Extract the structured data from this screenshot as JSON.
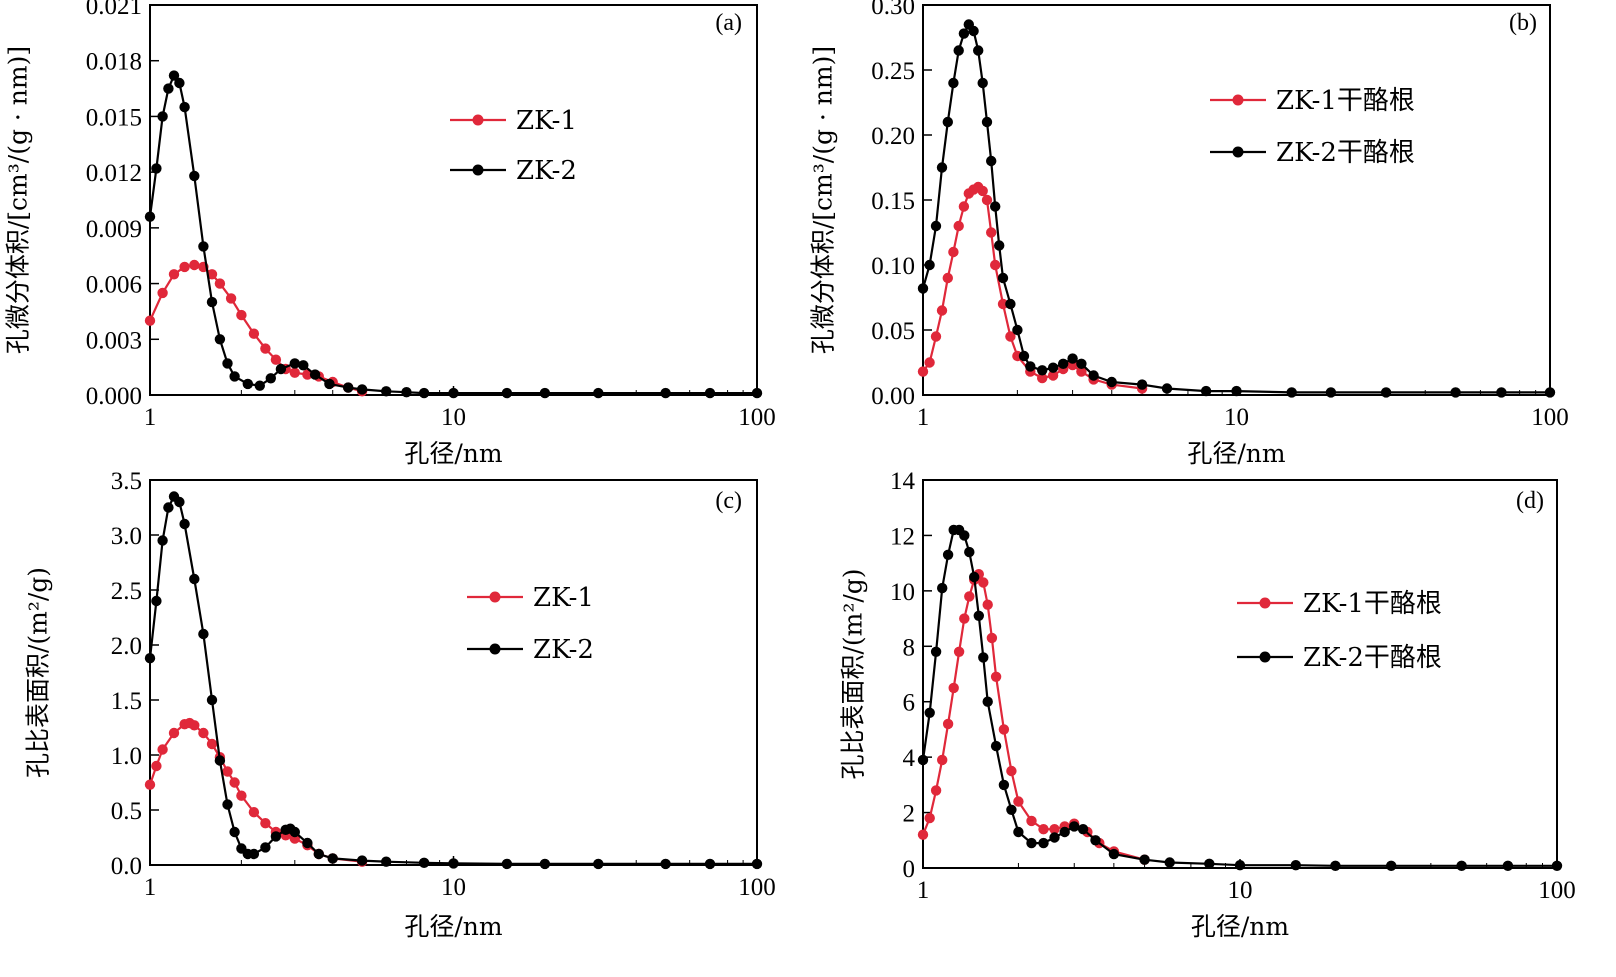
{
  "colors": {
    "ZK-1": "#e0283a",
    "ZK-2": "#000000"
  },
  "chart_data": [
    {
      "type": "line",
      "panel_label": "(a)",
      "xlabel": "孔径/nm",
      "ylabel": "孔微分体积/[cm³/(g · nm)]",
      "x_scale": "log",
      "xlim": [
        1,
        100
      ],
      "ylim": [
        0,
        0.021
      ],
      "x_ticks": [
        1,
        10,
        100
      ],
      "x_tick_labels": [
        "1",
        "10",
        "100"
      ],
      "y_ticks": [
        0,
        0.003,
        0.006,
        0.009,
        0.012,
        0.015,
        0.018,
        0.021
      ],
      "y_tick_labels": [
        "0.000",
        "0.003",
        "0.006",
        "0.009",
        "0.012",
        "0.015",
        "0.018",
        "0.021"
      ],
      "legend_position": "upper-center",
      "series": [
        {
          "name": "ZK-1",
          "color": "#e0283a",
          "points": [
            [
              1,
              0.004
            ],
            [
              1.1,
              0.0055
            ],
            [
              1.2,
              0.0065
            ],
            [
              1.3,
              0.0069
            ],
            [
              1.4,
              0.007
            ],
            [
              1.5,
              0.0069
            ],
            [
              1.6,
              0.0065
            ],
            [
              1.7,
              0.006
            ],
            [
              1.85,
              0.0052
            ],
            [
              2.0,
              0.0043
            ],
            [
              2.2,
              0.0033
            ],
            [
              2.4,
              0.0025
            ],
            [
              2.6,
              0.0019
            ],
            [
              2.8,
              0.0014
            ],
            [
              3.0,
              0.0012
            ],
            [
              3.3,
              0.0011
            ],
            [
              3.6,
              0.001
            ],
            [
              4.0,
              0.0007
            ],
            [
              4.5,
              0.0004
            ],
            [
              5,
              0.0002
            ]
          ]
        },
        {
          "name": "ZK-2",
          "color": "#000000",
          "points": [
            [
              1,
              0.0096
            ],
            [
              1.05,
              0.0122
            ],
            [
              1.1,
              0.015
            ],
            [
              1.15,
              0.0165
            ],
            [
              1.2,
              0.0172
            ],
            [
              1.25,
              0.0168
            ],
            [
              1.3,
              0.0155
            ],
            [
              1.4,
              0.0118
            ],
            [
              1.5,
              0.008
            ],
            [
              1.6,
              0.005
            ],
            [
              1.7,
              0.003
            ],
            [
              1.8,
              0.0017
            ],
            [
              1.9,
              0.001
            ],
            [
              2.1,
              0.0006
            ],
            [
              2.3,
              0.0005
            ],
            [
              2.5,
              0.0009
            ],
            [
              2.7,
              0.0014
            ],
            [
              3.0,
              0.0017
            ],
            [
              3.2,
              0.0016
            ],
            [
              3.5,
              0.0011
            ],
            [
              3.9,
              0.0006
            ],
            [
              4.5,
              0.0004
            ],
            [
              5,
              0.0003
            ],
            [
              6,
              0.0002
            ],
            [
              7,
              0.00015
            ],
            [
              8,
              0.0001
            ],
            [
              10,
              0.0001
            ],
            [
              15,
              0.0001
            ],
            [
              20,
              0.0001
            ],
            [
              30,
              0.0001
            ],
            [
              50,
              0.0001
            ],
            [
              70,
              0.0001
            ],
            [
              100,
              0.0001
            ]
          ]
        }
      ]
    },
    {
      "type": "line",
      "panel_label": "(b)",
      "xlabel": "孔径/nm",
      "ylabel": "孔微分体积/[cm³/(g · nm)]",
      "x_scale": "log",
      "xlim": [
        1,
        100
      ],
      "ylim": [
        0,
        0.3
      ],
      "x_ticks": [
        1,
        10,
        100
      ],
      "x_tick_labels": [
        "1",
        "10",
        "100"
      ],
      "y_ticks": [
        0,
        0.05,
        0.1,
        0.15,
        0.2,
        0.25,
        0.3
      ],
      "y_tick_labels": [
        "0.00",
        "0.05",
        "0.10",
        "0.15",
        "0.20",
        "0.25",
        "0.30"
      ],
      "legend_position": "upper-center",
      "series": [
        {
          "name": "ZK-1干酪根",
          "color": "#e0283a",
          "points": [
            [
              1,
              0.018
            ],
            [
              1.05,
              0.025
            ],
            [
              1.1,
              0.045
            ],
            [
              1.15,
              0.065
            ],
            [
              1.2,
              0.09
            ],
            [
              1.25,
              0.11
            ],
            [
              1.3,
              0.13
            ],
            [
              1.35,
              0.145
            ],
            [
              1.4,
              0.155
            ],
            [
              1.45,
              0.158
            ],
            [
              1.5,
              0.16
            ],
            [
              1.55,
              0.157
            ],
            [
              1.6,
              0.15
            ],
            [
              1.65,
              0.125
            ],
            [
              1.7,
              0.1
            ],
            [
              1.8,
              0.07
            ],
            [
              1.9,
              0.045
            ],
            [
              2.0,
              0.03
            ],
            [
              2.2,
              0.018
            ],
            [
              2.4,
              0.013
            ],
            [
              2.6,
              0.015
            ],
            [
              2.8,
              0.02
            ],
            [
              3.0,
              0.023
            ],
            [
              3.2,
              0.018
            ],
            [
              3.5,
              0.012
            ],
            [
              4,
              0.008
            ],
            [
              5,
              0.005
            ]
          ]
        },
        {
          "name": "ZK-2干酪根",
          "color": "#000000",
          "points": [
            [
              1,
              0.082
            ],
            [
              1.05,
              0.1
            ],
            [
              1.1,
              0.13
            ],
            [
              1.15,
              0.175
            ],
            [
              1.2,
              0.21
            ],
            [
              1.25,
              0.24
            ],
            [
              1.3,
              0.265
            ],
            [
              1.35,
              0.278
            ],
            [
              1.4,
              0.285
            ],
            [
              1.45,
              0.28
            ],
            [
              1.5,
              0.265
            ],
            [
              1.55,
              0.24
            ],
            [
              1.6,
              0.21
            ],
            [
              1.65,
              0.18
            ],
            [
              1.7,
              0.145
            ],
            [
              1.75,
              0.115
            ],
            [
              1.8,
              0.09
            ],
            [
              1.9,
              0.07
            ],
            [
              2.0,
              0.05
            ],
            [
              2.1,
              0.03
            ],
            [
              2.2,
              0.022
            ],
            [
              2.4,
              0.019
            ],
            [
              2.6,
              0.021
            ],
            [
              2.8,
              0.024
            ],
            [
              3.0,
              0.028
            ],
            [
              3.2,
              0.024
            ],
            [
              3.5,
              0.015
            ],
            [
              4,
              0.01
            ],
            [
              5,
              0.008
            ],
            [
              6,
              0.005
            ],
            [
              8,
              0.003
            ],
            [
              10,
              0.003
            ],
            [
              15,
              0.002
            ],
            [
              20,
              0.002
            ],
            [
              30,
              0.002
            ],
            [
              50,
              0.002
            ],
            [
              70,
              0.002
            ],
            [
              100,
              0.002
            ]
          ]
        }
      ]
    },
    {
      "type": "line",
      "panel_label": "(c)",
      "xlabel": "孔径/nm",
      "ylabel": "孔比表面积/(m²/g)",
      "x_scale": "log",
      "xlim": [
        1,
        100
      ],
      "ylim": [
        0,
        3.5
      ],
      "x_ticks": [
        1,
        10,
        100
      ],
      "x_tick_labels": [
        "1",
        "10",
        "100"
      ],
      "y_ticks": [
        0,
        0.5,
        1.0,
        1.5,
        2.0,
        2.5,
        3.0,
        3.5
      ],
      "y_tick_labels": [
        "0.0",
        "0.5",
        "1.0",
        "1.5",
        "2.0",
        "2.5",
        "3.0",
        "3.5"
      ],
      "legend_position": "upper-center",
      "series": [
        {
          "name": "ZK-1",
          "color": "#e0283a",
          "points": [
            [
              1,
              0.73
            ],
            [
              1.05,
              0.9
            ],
            [
              1.1,
              1.05
            ],
            [
              1.2,
              1.2
            ],
            [
              1.3,
              1.28
            ],
            [
              1.35,
              1.29
            ],
            [
              1.4,
              1.27
            ],
            [
              1.5,
              1.2
            ],
            [
              1.6,
              1.1
            ],
            [
              1.7,
              0.98
            ],
            [
              1.8,
              0.85
            ],
            [
              1.9,
              0.75
            ],
            [
              2.0,
              0.63
            ],
            [
              2.2,
              0.48
            ],
            [
              2.4,
              0.38
            ],
            [
              2.6,
              0.3
            ],
            [
              2.8,
              0.27
            ],
            [
              3.0,
              0.24
            ],
            [
              3.3,
              0.18
            ],
            [
              3.6,
              0.1
            ],
            [
              4,
              0.06
            ],
            [
              5,
              0.03
            ]
          ]
        },
        {
          "name": "ZK-2",
          "color": "#000000",
          "points": [
            [
              1,
              1.88
            ],
            [
              1.05,
              2.4
            ],
            [
              1.1,
              2.95
            ],
            [
              1.15,
              3.25
            ],
            [
              1.2,
              3.35
            ],
            [
              1.25,
              3.3
            ],
            [
              1.3,
              3.1
            ],
            [
              1.4,
              2.6
            ],
            [
              1.5,
              2.1
            ],
            [
              1.6,
              1.5
            ],
            [
              1.7,
              0.95
            ],
            [
              1.8,
              0.55
            ],
            [
              1.9,
              0.3
            ],
            [
              2.0,
              0.15
            ],
            [
              2.1,
              0.1
            ],
            [
              2.2,
              0.1
            ],
            [
              2.4,
              0.16
            ],
            [
              2.6,
              0.26
            ],
            [
              2.8,
              0.32
            ],
            [
              2.9,
              0.33
            ],
            [
              3.0,
              0.3
            ],
            [
              3.3,
              0.2
            ],
            [
              3.6,
              0.1
            ],
            [
              4,
              0.06
            ],
            [
              5,
              0.04
            ],
            [
              6,
              0.03
            ],
            [
              8,
              0.02
            ],
            [
              10,
              0.015
            ],
            [
              15,
              0.01
            ],
            [
              20,
              0.01
            ],
            [
              30,
              0.01
            ],
            [
              50,
              0.01
            ],
            [
              70,
              0.01
            ],
            [
              100,
              0.01
            ]
          ]
        }
      ]
    },
    {
      "type": "line",
      "panel_label": "(d)",
      "xlabel": "孔径/nm",
      "ylabel": "孔比表面积/(m²/g)",
      "x_scale": "log",
      "xlim": [
        1,
        100
      ],
      "ylim": [
        0,
        14
      ],
      "x_ticks": [
        1,
        10,
        100
      ],
      "x_tick_labels": [
        "1",
        "10",
        "100"
      ],
      "y_ticks": [
        0,
        2,
        4,
        6,
        8,
        10,
        12,
        14
      ],
      "y_tick_labels": [
        "0",
        "2",
        "4",
        "6",
        "8",
        "10",
        "12",
        "14"
      ],
      "legend_position": "upper-center",
      "series": [
        {
          "name": "ZK-1干酪根",
          "color": "#e0283a",
          "points": [
            [
              1,
              1.2
            ],
            [
              1.05,
              1.8
            ],
            [
              1.1,
              2.8
            ],
            [
              1.15,
              3.9
            ],
            [
              1.2,
              5.2
            ],
            [
              1.25,
              6.5
            ],
            [
              1.3,
              7.8
            ],
            [
              1.35,
              9.0
            ],
            [
              1.4,
              9.8
            ],
            [
              1.45,
              10.4
            ],
            [
              1.5,
              10.6
            ],
            [
              1.55,
              10.3
            ],
            [
              1.6,
              9.5
            ],
            [
              1.65,
              8.3
            ],
            [
              1.7,
              6.9
            ],
            [
              1.8,
              5.0
            ],
            [
              1.9,
              3.5
            ],
            [
              2.0,
              2.4
            ],
            [
              2.2,
              1.7
            ],
            [
              2.4,
              1.4
            ],
            [
              2.6,
              1.4
            ],
            [
              2.8,
              1.5
            ],
            [
              3.0,
              1.6
            ],
            [
              3.3,
              1.3
            ],
            [
              3.6,
              0.9
            ],
            [
              4,
              0.6
            ],
            [
              5,
              0.3
            ]
          ]
        },
        {
          "name": "ZK-2干酪根",
          "color": "#000000",
          "points": [
            [
              1,
              3.9
            ],
            [
              1.05,
              5.6
            ],
            [
              1.1,
              7.8
            ],
            [
              1.15,
              10.1
            ],
            [
              1.2,
              11.3
            ],
            [
              1.25,
              12.2
            ],
            [
              1.3,
              12.2
            ],
            [
              1.35,
              12.0
            ],
            [
              1.4,
              11.4
            ],
            [
              1.45,
              10.5
            ],
            [
              1.5,
              9.1
            ],
            [
              1.55,
              7.6
            ],
            [
              1.6,
              6.0
            ],
            [
              1.7,
              4.4
            ],
            [
              1.8,
              3.0
            ],
            [
              1.9,
              2.1
            ],
            [
              2.0,
              1.3
            ],
            [
              2.2,
              0.9
            ],
            [
              2.4,
              0.9
            ],
            [
              2.6,
              1.1
            ],
            [
              2.8,
              1.3
            ],
            [
              3.0,
              1.5
            ],
            [
              3.2,
              1.4
            ],
            [
              3.5,
              1.0
            ],
            [
              4,
              0.5
            ],
            [
              5,
              0.3
            ],
            [
              6,
              0.2
            ],
            [
              8,
              0.15
            ],
            [
              10,
              0.1
            ],
            [
              15,
              0.1
            ],
            [
              20,
              0.08
            ],
            [
              30,
              0.08
            ],
            [
              50,
              0.08
            ],
            [
              70,
              0.08
            ],
            [
              100,
              0.08
            ]
          ]
        }
      ]
    }
  ]
}
